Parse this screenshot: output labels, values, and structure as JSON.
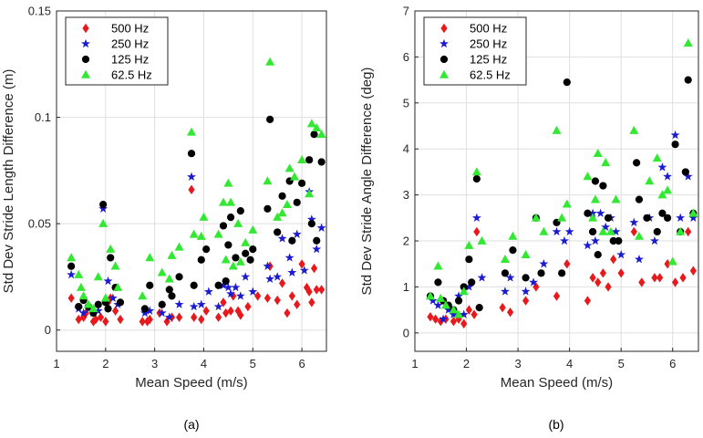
{
  "chart_data": [
    {
      "type": "scatter",
      "panel_caption": "(a)",
      "xlabel": "Mean Speed (m/s)",
      "ylabel": "Std Dev Stride Length Difference (m)",
      "xlim": [
        1,
        6.5
      ],
      "ylim": [
        -0.01,
        0.15
      ],
      "xticks": [
        1,
        2,
        3,
        4,
        5,
        6
      ],
      "yticks": [
        0,
        0.05,
        0.1,
        0.15
      ],
      "ytick_labels": [
        "0",
        "0.05",
        "0.1",
        "0.15"
      ],
      "legend_position": "top-left",
      "series": [
        {
          "name": "500 Hz",
          "marker": "diamond",
          "color": "#e8191c",
          "x": [
            1.3,
            1.45,
            1.55,
            1.6,
            1.75,
            1.8,
            1.9,
            2.0,
            2.05,
            2.1,
            2.2,
            2.3,
            2.75,
            2.85,
            2.9,
            3.1,
            3.25,
            3.35,
            3.5,
            3.75,
            3.8,
            3.95,
            4.05,
            4.3,
            4.4,
            4.45,
            4.55,
            4.6,
            4.7,
            4.75,
            4.9,
            5.1,
            5.3,
            5.35,
            5.5,
            5.6,
            5.7,
            5.8,
            5.9,
            6.0,
            6.1,
            6.15,
            6.2,
            6.25,
            6.3,
            6.4
          ],
          "y": [
            0.015,
            0.005,
            0.006,
            0.008,
            0.004,
            0.005,
            0.006,
            0.004,
            0.013,
            0.015,
            0.009,
            0.005,
            0.004,
            0.004,
            0.005,
            0.008,
            0.004,
            0.006,
            0.006,
            0.066,
            0.006,
            0.005,
            0.009,
            0.006,
            0.013,
            0.008,
            0.009,
            0.016,
            0.009,
            0.007,
            0.011,
            0.016,
            0.015,
            0.03,
            0.014,
            0.022,
            0.008,
            0.016,
            0.012,
            0.031,
            0.02,
            0.018,
            0.013,
            0.029,
            0.019,
            0.019
          ]
        },
        {
          "name": "250 Hz",
          "marker": "star",
          "color": "#1a1ad1",
          "x": [
            1.3,
            1.45,
            1.55,
            1.65,
            1.75,
            1.85,
            1.95,
            2.05,
            2.15,
            2.25,
            2.8,
            2.9,
            3.15,
            3.3,
            3.5,
            3.75,
            3.8,
            3.95,
            4.1,
            4.3,
            4.4,
            4.5,
            4.55,
            4.65,
            4.75,
            4.85,
            5.0,
            5.3,
            5.35,
            5.5,
            5.6,
            5.75,
            5.8,
            5.9,
            6.05,
            6.15,
            6.2,
            6.3,
            6.4
          ],
          "y": [
            0.026,
            0.01,
            0.008,
            0.01,
            0.008,
            0.009,
            0.057,
            0.023,
            0.015,
            0.012,
            0.008,
            0.009,
            0.008,
            0.006,
            0.012,
            0.072,
            0.011,
            0.012,
            0.018,
            0.011,
            0.021,
            0.02,
            0.017,
            0.02,
            0.016,
            0.025,
            0.018,
            0.03,
            0.024,
            0.025,
            0.043,
            0.034,
            0.027,
            0.045,
            0.028,
            0.065,
            0.052,
            0.038,
            0.048
          ]
        },
        {
          "name": "125 Hz",
          "marker": "circle",
          "color": "#000000",
          "x": [
            1.3,
            1.45,
            1.55,
            1.65,
            1.75,
            1.85,
            1.95,
            2.0,
            2.05,
            2.1,
            2.2,
            2.3,
            2.8,
            2.9,
            3.15,
            3.3,
            3.35,
            3.5,
            3.75,
            3.8,
            3.95,
            4.05,
            4.3,
            4.4,
            4.45,
            4.5,
            4.55,
            4.65,
            4.75,
            4.85,
            4.95,
            5.0,
            5.3,
            5.35,
            5.5,
            5.6,
            5.75,
            5.8,
            5.9,
            6.0,
            6.15,
            6.2,
            6.25,
            6.3,
            6.4
          ],
          "y": [
            0.03,
            0.011,
            0.014,
            0.011,
            0.008,
            0.012,
            0.059,
            0.013,
            0.01,
            0.034,
            0.02,
            0.013,
            0.01,
            0.021,
            0.012,
            0.019,
            0.016,
            0.025,
            0.083,
            0.021,
            0.033,
            0.038,
            0.021,
            0.049,
            0.023,
            0.04,
            0.053,
            0.034,
            0.056,
            0.036,
            0.033,
            0.038,
            0.057,
            0.099,
            0.046,
            0.063,
            0.07,
            0.042,
            0.06,
            0.069,
            0.08,
            0.05,
            0.092,
            0.042,
            0.079
          ]
        },
        {
          "name": "62.5 Hz",
          "marker": "triangle",
          "color": "#33e833",
          "x": [
            1.3,
            1.45,
            1.5,
            1.55,
            1.65,
            1.75,
            1.85,
            1.95,
            2.0,
            2.1,
            2.2,
            2.25,
            2.75,
            2.9,
            3.15,
            3.3,
            3.35,
            3.5,
            3.75,
            3.8,
            3.95,
            4.0,
            4.3,
            4.4,
            4.45,
            4.5,
            4.55,
            4.6,
            4.7,
            4.75,
            4.85,
            5.0,
            5.3,
            5.35,
            5.5,
            5.6,
            5.7,
            5.75,
            5.85,
            6.0,
            6.15,
            6.2,
            6.3,
            6.4
          ],
          "y": [
            0.034,
            0.026,
            0.02,
            0.016,
            0.012,
            0.01,
            0.025,
            0.05,
            0.015,
            0.038,
            0.03,
            0.02,
            0.016,
            0.034,
            0.027,
            0.024,
            0.035,
            0.039,
            0.093,
            0.045,
            0.044,
            0.053,
            0.045,
            0.06,
            0.033,
            0.069,
            0.06,
            0.03,
            0.05,
            0.032,
            0.041,
            0.047,
            0.07,
            0.126,
            0.053,
            0.055,
            0.059,
            0.076,
            0.072,
            0.08,
            0.064,
            0.097,
            0.095,
            0.092
          ]
        }
      ]
    },
    {
      "type": "scatter",
      "panel_caption": "(b)",
      "xlabel": "Mean Speed (m/s)",
      "ylabel": "Std Dev Stride Angle Difference (deg)",
      "xlim": [
        1,
        6.5
      ],
      "ylim": [
        -0.4,
        7
      ],
      "xticks": [
        1,
        2,
        3,
        4,
        5,
        6
      ],
      "yticks": [
        0,
        1,
        2,
        3,
        4,
        5,
        6,
        7
      ],
      "ytick_labels": [
        "0",
        "1",
        "2",
        "3",
        "4",
        "5",
        "6",
        "7"
      ],
      "legend_position": "top-left",
      "series": [
        {
          "name": "500 Hz",
          "marker": "diamond",
          "color": "#e8191c",
          "x": [
            1.3,
            1.4,
            1.5,
            1.6,
            1.75,
            1.85,
            1.95,
            2.05,
            2.15,
            2.2,
            2.7,
            2.85,
            3.15,
            3.35,
            3.75,
            3.95,
            4.35,
            4.45,
            4.55,
            4.65,
            4.75,
            4.85,
            5.0,
            5.25,
            5.4,
            5.65,
            5.75,
            5.9,
            6.05,
            6.2,
            6.3,
            6.4
          ],
          "y": [
            0.35,
            0.3,
            0.25,
            0.3,
            0.25,
            0.3,
            0.2,
            0.5,
            0.4,
            2.2,
            0.55,
            0.45,
            0.7,
            1.0,
            0.8,
            1.5,
            0.7,
            1.2,
            1.1,
            1.3,
            1.0,
            1.6,
            1.3,
            2.2,
            1.1,
            1.2,
            1.2,
            1.5,
            1.1,
            1.2,
            2.2,
            1.35
          ]
        },
        {
          "name": "250 Hz",
          "marker": "star",
          "color": "#1a1ad1",
          "x": [
            1.35,
            1.45,
            1.55,
            1.65,
            1.75,
            1.85,
            1.95,
            2.05,
            2.2,
            2.3,
            2.75,
            2.85,
            3.15,
            3.3,
            3.5,
            3.75,
            3.9,
            4.0,
            4.35,
            4.45,
            4.5,
            4.6,
            4.7,
            4.8,
            4.9,
            5.0,
            5.25,
            5.35,
            5.55,
            5.65,
            5.8,
            5.9,
            6.05,
            6.15,
            6.3,
            6.4
          ],
          "y": [
            0.7,
            0.6,
            0.3,
            0.5,
            0.4,
            0.8,
            0.4,
            1.0,
            2.5,
            1.2,
            0.9,
            1.2,
            0.9,
            1.1,
            1.5,
            2.2,
            2.0,
            2.2,
            1.9,
            2.6,
            2.0,
            2.6,
            2.3,
            2.5,
            2.2,
            1.7,
            2.4,
            1.6,
            2.5,
            2.0,
            3.6,
            3.4,
            4.3,
            2.5,
            3.4,
            2.5
          ]
        },
        {
          "name": "125 Hz",
          "marker": "circle",
          "color": "#000000",
          "x": [
            1.3,
            1.45,
            1.55,
            1.65,
            1.75,
            1.85,
            1.95,
            2.05,
            2.1,
            2.2,
            2.25,
            2.75,
            2.9,
            3.15,
            3.35,
            3.45,
            3.75,
            3.85,
            3.95,
            4.35,
            4.45,
            4.5,
            4.55,
            4.65,
            4.75,
            4.85,
            4.95,
            5.3,
            5.35,
            5.5,
            5.7,
            5.8,
            5.9,
            6.05,
            6.15,
            6.25,
            6.3,
            6.4
          ],
          "y": [
            0.8,
            1.1,
            0.7,
            0.6,
            0.5,
            0.7,
            1.0,
            1.6,
            1.1,
            3.35,
            0.55,
            1.3,
            1.8,
            1.2,
            2.5,
            1.3,
            2.4,
            1.3,
            5.45,
            2.6,
            2.2,
            3.3,
            1.7,
            3.2,
            2.5,
            2.0,
            2.0,
            3.7,
            2.9,
            2.5,
            2.2,
            2.6,
            2.5,
            4.1,
            2.2,
            3.5,
            5.5,
            2.6
          ]
        },
        {
          "name": "62.5 Hz",
          "marker": "triangle",
          "color": "#33e833",
          "x": [
            1.3,
            1.45,
            1.5,
            1.6,
            1.75,
            1.85,
            1.95,
            2.05,
            2.2,
            2.3,
            2.75,
            2.9,
            3.15,
            3.35,
            3.5,
            3.75,
            3.85,
            3.95,
            4.35,
            4.45,
            4.5,
            4.55,
            4.65,
            4.7,
            4.8,
            4.9,
            5.25,
            5.35,
            5.55,
            5.7,
            5.8,
            5.9,
            6.0,
            6.15,
            6.3,
            6.4
          ],
          "y": [
            0.8,
            1.45,
            0.75,
            0.6,
            0.5,
            0.4,
            0.9,
            1.9,
            3.5,
            2.0,
            1.6,
            2.1,
            1.7,
            2.5,
            2.2,
            4.4,
            2.5,
            2.8,
            3.4,
            2.5,
            2.9,
            3.9,
            2.2,
            3.7,
            2.2,
            2.9,
            4.4,
            2.1,
            3.3,
            3.8,
            3.0,
            3.1,
            1.55,
            2.2,
            6.3,
            2.6
          ]
        }
      ]
    }
  ]
}
